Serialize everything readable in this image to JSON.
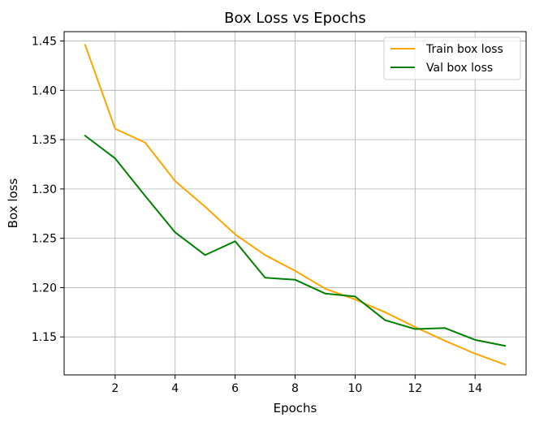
{
  "chart_data": {
    "type": "line",
    "title": "Box Loss vs Epochs",
    "xlabel": "Epochs",
    "ylabel": "Box loss",
    "xlim": [
      0.3,
      15.7
    ],
    "ylim": [
      1.1115,
      1.4595
    ],
    "xticks": [
      2,
      4,
      6,
      8,
      10,
      12,
      14
    ],
    "yticks": [
      1.15,
      1.2,
      1.25,
      1.3,
      1.35,
      1.4,
      1.45
    ],
    "grid": true,
    "legend_position": "top-right",
    "x": [
      1,
      2,
      3,
      4,
      5,
      6,
      7,
      8,
      9,
      10,
      11,
      12,
      13,
      14,
      15
    ],
    "series": [
      {
        "name": "Train box loss",
        "color": "#ffa500",
        "values": [
          1.446,
          1.361,
          1.347,
          1.308,
          1.282,
          1.254,
          1.233,
          1.217,
          1.199,
          1.188,
          1.175,
          1.16,
          1.146,
          1.133,
          1.122
        ]
      },
      {
        "name": "Val box loss",
        "color": "#008000",
        "values": [
          1.354,
          1.331,
          1.293,
          1.256,
          1.233,
          1.247,
          1.21,
          1.208,
          1.194,
          1.191,
          1.167,
          1.158,
          1.159,
          1.147,
          1.141
        ]
      }
    ]
  }
}
